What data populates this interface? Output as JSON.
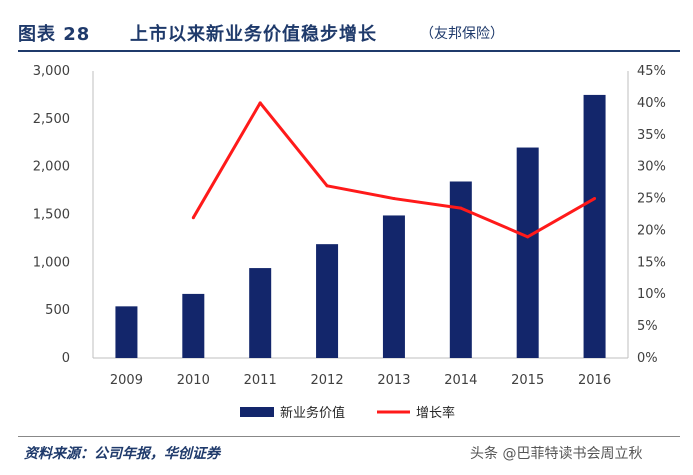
{
  "header": {
    "figure_label": "图表 28",
    "title": "上市以来新业务价值稳步增长",
    "source_note": "（友邦保险）"
  },
  "footer": {
    "source": "资料来源：公司年报，华创证券",
    "watermark": "头条 @巴菲特读书会周立秋"
  },
  "colors": {
    "bar": "#13266b",
    "line": "#ff1a1a",
    "title": "#1f3a6b"
  },
  "chart_data": {
    "type": "bar",
    "categories": [
      "2009",
      "2010",
      "2011",
      "2012",
      "2013",
      "2014",
      "2015",
      "2016"
    ],
    "series": [
      {
        "name": "新业务价值",
        "type": "bar",
        "axis": "left",
        "values": [
          540,
          670,
          940,
          1190,
          1490,
          1845,
          2200,
          2750
        ]
      },
      {
        "name": "增长率",
        "type": "line",
        "axis": "right",
        "values": [
          null,
          0.22,
          0.4,
          0.27,
          0.25,
          0.235,
          0.19,
          0.25
        ]
      }
    ],
    "y_left": {
      "min": 0,
      "max": 3000,
      "ticks": [
        "0",
        "500",
        "1,000",
        "1,500",
        "2,000",
        "2,500",
        "3,000"
      ]
    },
    "y_right": {
      "min": 0,
      "max": 0.45,
      "ticks": [
        "0%",
        "5%",
        "10%",
        "15%",
        "20%",
        "25%",
        "30%",
        "35%",
        "40%",
        "45%"
      ]
    },
    "legend_position": "bottom-center",
    "grid": false
  }
}
